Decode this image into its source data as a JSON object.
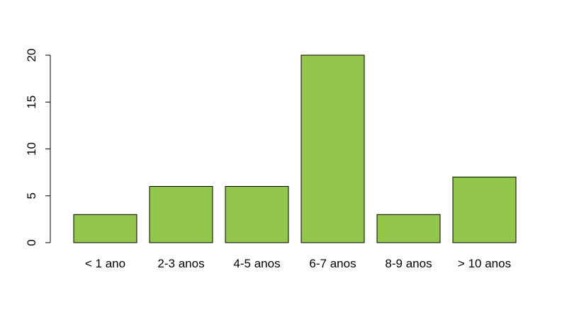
{
  "chart_data": {
    "type": "bar",
    "categories": [
      "< 1 ano",
      "2-3 anos",
      "4-5 anos",
      "6-7 anos",
      "8-9 anos",
      "> 10 anos"
    ],
    "values": [
      3,
      6,
      6,
      20,
      3,
      7
    ],
    "yticks": [
      "0",
      "5",
      "10",
      "15",
      "20"
    ],
    "ylim": [
      0,
      20
    ],
    "title": "",
    "xlabel": "",
    "ylabel": "",
    "bar_color": "#92c74c",
    "grid": false,
    "legend": "none"
  }
}
